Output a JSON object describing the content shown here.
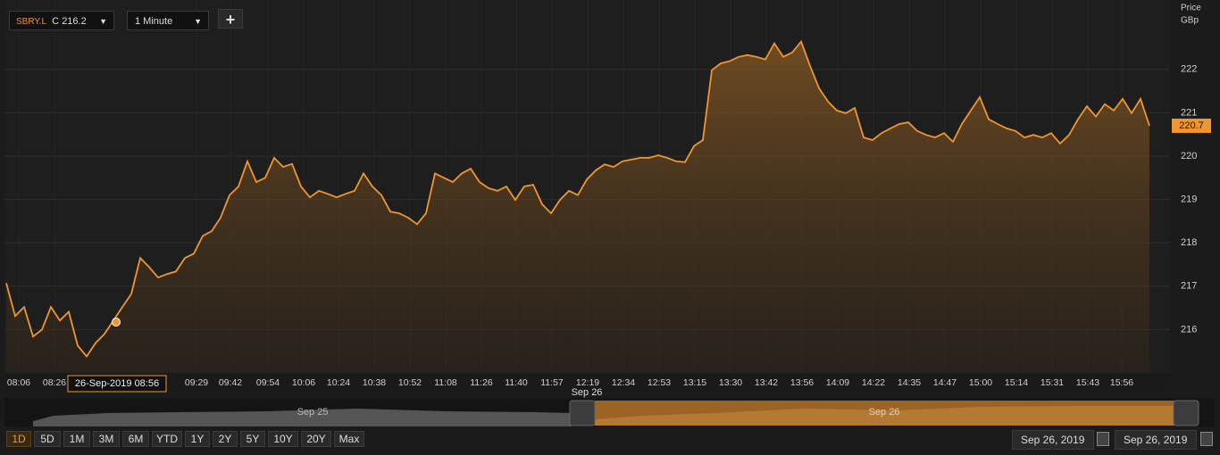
{
  "chart_data": {
    "type": "line",
    "series": [
      {
        "name": "SBRY.L",
        "color": "#f0962e",
        "values": [
          217.07,
          216.31,
          216.52,
          215.84,
          216.0,
          216.52,
          216.21,
          216.41,
          215.63,
          215.38,
          215.69,
          215.9,
          216.21,
          216.52,
          216.82,
          217.65,
          217.44,
          217.2,
          217.28,
          217.34,
          217.65,
          217.75,
          218.16,
          218.27,
          218.58,
          219.1,
          219.3,
          219.88,
          219.4,
          219.5,
          219.96,
          219.75,
          219.82,
          219.3,
          219.05,
          219.2,
          219.13,
          219.05,
          219.13,
          219.2,
          219.6,
          219.3,
          219.1,
          218.72,
          218.68,
          218.58,
          218.43,
          218.68,
          219.6,
          219.5,
          219.4,
          219.6,
          219.71,
          219.4,
          219.26,
          219.2,
          219.3,
          218.99,
          219.3,
          219.34,
          218.89,
          218.68,
          218.99,
          219.2,
          219.1,
          219.46,
          219.67,
          219.81,
          219.75,
          219.88,
          219.92,
          219.96,
          219.96,
          220.02,
          219.96,
          219.88,
          219.86,
          220.23,
          220.37,
          221.98,
          222.14,
          222.19,
          222.29,
          222.33,
          222.29,
          222.23,
          222.6,
          222.29,
          222.39,
          222.64,
          222.08,
          221.57,
          221.26,
          221.05,
          220.99,
          221.11,
          220.43,
          220.37,
          220.53,
          220.64,
          220.74,
          220.78,
          220.58,
          220.49,
          220.43,
          220.53,
          220.33,
          220.74,
          221.05,
          221.36,
          220.85,
          220.74,
          220.64,
          220.58,
          220.43,
          220.49,
          220.43,
          220.53,
          220.29,
          220.49,
          220.85,
          221.15,
          220.91,
          221.2,
          221.05,
          221.32,
          220.99,
          221.32,
          220.7
        ]
      }
    ],
    "xlim": [
      0,
      128
    ],
    "xticks": [
      {
        "value": 1.4,
        "label": "08:06"
      },
      {
        "value": 5.4,
        "label": "08:26"
      },
      {
        "value": 21.3,
        "label": "09:29"
      },
      {
        "value": 25.1,
        "label": "09:42"
      },
      {
        "value": 29.3,
        "label": "09:54"
      },
      {
        "value": 33.3,
        "label": "10:06"
      },
      {
        "value": 37.2,
        "label": "10:24"
      },
      {
        "value": 41.2,
        "label": "10:38"
      },
      {
        "value": 45.2,
        "label": "10:52"
      },
      {
        "value": 49.2,
        "label": "11:08"
      },
      {
        "value": 53.2,
        "label": "11:26"
      },
      {
        "value": 57.1,
        "label": "11:40"
      },
      {
        "value": 61.1,
        "label": "11:57"
      },
      {
        "value": 65.1,
        "label": "12:19"
      },
      {
        "value": 69.1,
        "label": "12:34"
      },
      {
        "value": 73.1,
        "label": "12:53"
      },
      {
        "value": 77.1,
        "label": "13:15"
      },
      {
        "value": 81.1,
        "label": "13:30"
      },
      {
        "value": 85.1,
        "label": "13:42"
      },
      {
        "value": 89.1,
        "label": "13:56"
      },
      {
        "value": 93.1,
        "label": "14:09"
      },
      {
        "value": 97.1,
        "label": "14:22"
      },
      {
        "value": 101.1,
        "label": "14:35"
      },
      {
        "value": 105.1,
        "label": "14:47"
      },
      {
        "value": 109.1,
        "label": "15:00"
      },
      {
        "value": 113.1,
        "label": "15:14"
      },
      {
        "value": 117.1,
        "label": "15:31"
      },
      {
        "value": 121.1,
        "label": "15:43"
      },
      {
        "value": 124.9,
        "label": "15:56"
      }
    ],
    "ylim": [
      215.0,
      223.6
    ],
    "yticks": [
      216,
      217,
      218,
      219,
      220,
      221,
      222
    ],
    "y_axis_title": [
      "Price",
      "GBp"
    ],
    "grid": true,
    "crosshair_label": "26-Sep-2019 08:56"
  },
  "ui": {
    "close_prefix": "C",
    "close": "216.2",
    "interval": "1 Minute",
    "add": "+",
    "navigator": {
      "top_label": "Sep 26",
      "left": "Sep 25",
      "right": "Sep 26"
    },
    "ranges": [
      "1D",
      "5D",
      "1M",
      "3M",
      "6M",
      "YTD",
      "1Y",
      "2Y",
      "5Y",
      "10Y",
      "20Y",
      "Max"
    ],
    "from_date": "Sep 26, 2019",
    "to_date": "Sep 26, 2019"
  }
}
